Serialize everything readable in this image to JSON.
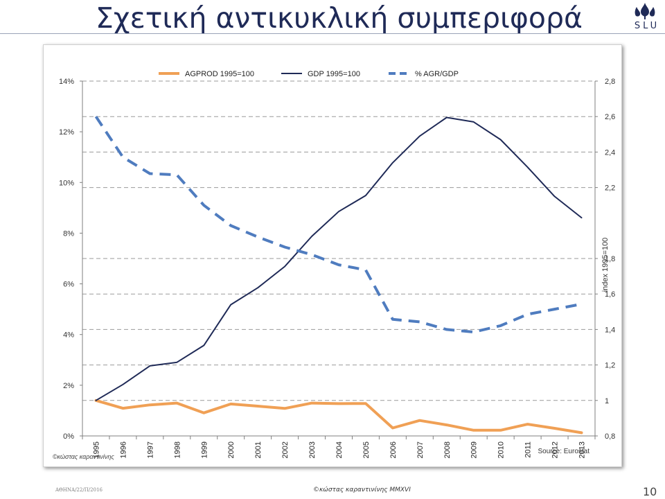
{
  "slide": {
    "title": "Σχετική αντικυκλική συμπεριφορά",
    "logo_text": "SLU",
    "footer_left": "ΑΘΗΝΑ/22/Π/2016",
    "footer_center": "©κώστας καραντινίνης MMXVI",
    "page_number": "10"
  },
  "chart_data": {
    "type": "line",
    "x": [
      "1995",
      "1996",
      "1997",
      "1998",
      "1999",
      "2000",
      "2001",
      "2002",
      "2003",
      "2004",
      "2005",
      "2006",
      "2007",
      "2008",
      "2009",
      "2010",
      "2011",
      "2012",
      "2013"
    ],
    "series": [
      {
        "name": "AGPROD 1995=100",
        "axis": "right",
        "color": "#f0a055",
        "style": "solid",
        "values": [
          1.0,
          0.956,
          0.975,
          0.985,
          0.93,
          0.98,
          0.968,
          0.955,
          0.985,
          0.982,
          0.983,
          0.845,
          0.887,
          0.862,
          0.832,
          0.832,
          0.866,
          0.843,
          0.818
        ]
      },
      {
        "name": "GDP 1995=100",
        "axis": "right",
        "color": "#1f2a57",
        "style": "solid",
        "values": [
          1.0,
          1.09,
          1.195,
          1.215,
          1.31,
          1.54,
          1.635,
          1.755,
          1.925,
          2.065,
          2.155,
          2.34,
          2.49,
          2.595,
          2.57,
          2.47,
          2.315,
          2.15,
          2.03
        ]
      },
      {
        "name": "% AGR/GDP",
        "axis": "left",
        "color": "#4f7cbf",
        "style": "dashed",
        "values": [
          12.6,
          11.0,
          10.35,
          10.3,
          9.1,
          8.3,
          7.85,
          7.45,
          7.15,
          6.75,
          6.55,
          4.6,
          4.5,
          4.2,
          4.1,
          4.35,
          4.8,
          5.0,
          5.2
        ]
      }
    ],
    "y_left": {
      "ticks": [
        "0%",
        "2%",
        "4%",
        "6%",
        "8%",
        "10%",
        "12%",
        "14%"
      ],
      "ylim": [
        0,
        14
      ]
    },
    "y_right": {
      "label": "index 1995=100",
      "ticks": [
        "0,8",
        "1",
        "1,2",
        "1,4",
        "1,6",
        "1,8",
        "2,2",
        "2,4",
        "2,6",
        "2,8"
      ],
      "ylim": [
        0.8,
        2.8
      ]
    },
    "legend_position": "top",
    "grid": "dashed horizontal",
    "source": "Source: Eurostat",
    "watermark": "©κώστας καραντινίνης"
  }
}
